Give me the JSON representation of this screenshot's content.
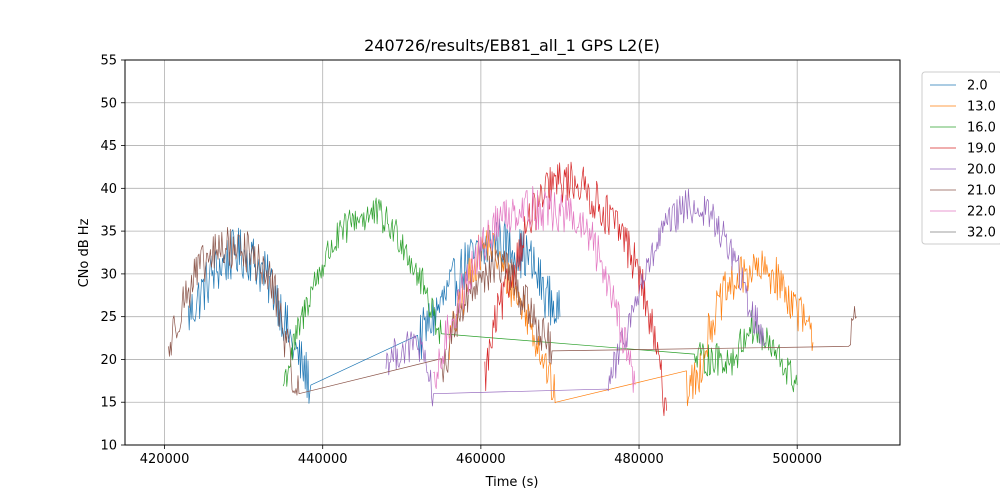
{
  "chart_data": {
    "type": "line",
    "title": "240726/results/EB81_all_1 GPS L2(E)",
    "xlabel": "Time (s)",
    "ylabel": "CNo dB Hz",
    "xlim": [
      415000,
      513000
    ],
    "ylim": [
      10,
      55
    ],
    "xticks": [
      420000,
      440000,
      460000,
      480000,
      500000
    ],
    "yticks": [
      10,
      15,
      20,
      25,
      30,
      35,
      40,
      45,
      50,
      55
    ],
    "grid": true,
    "legend_position": "outside-top-right",
    "series": [
      {
        "name": "2.0",
        "color": "#1f77b4",
        "noise": 3.0,
        "points": [
          [
            423000,
            25
          ],
          [
            426000,
            30
          ],
          [
            429000,
            32.5
          ],
          [
            431000,
            32
          ],
          [
            434000,
            28
          ],
          [
            436000,
            22
          ],
          [
            438500,
            17
          ],
          [
            452000,
            22
          ],
          [
            458000,
            31
          ],
          [
            462000,
            34
          ],
          [
            464000,
            33
          ],
          [
            466000,
            32
          ],
          [
            468000,
            28
          ],
          [
            470000,
            25
          ]
        ]
      },
      {
        "name": "13.0",
        "color": "#ff7f0e",
        "noise": 2.5,
        "points": [
          [
            456000,
            22
          ],
          [
            459000,
            31
          ],
          [
            461000,
            34
          ],
          [
            463000,
            30
          ],
          [
            466000,
            25
          ],
          [
            468000,
            20
          ],
          [
            469500,
            15
          ],
          [
            486000,
            16.5
          ],
          [
            487500,
            18
          ],
          [
            489000,
            24
          ],
          [
            491000,
            28
          ],
          [
            494000,
            30.5
          ],
          [
            497000,
            30
          ],
          [
            500000,
            26
          ],
          [
            502000,
            22
          ]
        ]
      },
      {
        "name": "16.0",
        "color": "#2ca02c",
        "noise": 2.0,
        "points": [
          [
            435000,
            17
          ],
          [
            436500,
            22
          ],
          [
            438500,
            28
          ],
          [
            441000,
            33
          ],
          [
            444000,
            36.5
          ],
          [
            447000,
            37
          ],
          [
            450000,
            34
          ],
          [
            453000,
            28
          ],
          [
            455000,
            23
          ],
          [
            487000,
            20
          ],
          [
            492000,
            20
          ],
          [
            494000,
            24
          ],
          [
            497000,
            21
          ],
          [
            500000,
            17
          ]
        ]
      },
      {
        "name": "19.0",
        "color": "#d62728",
        "noise": 2.5,
        "points": [
          [
            460500,
            18
          ],
          [
            462000,
            25
          ],
          [
            464000,
            30
          ],
          [
            466000,
            36
          ],
          [
            469000,
            40.5
          ],
          [
            472000,
            41
          ],
          [
            475000,
            38
          ],
          [
            478000,
            34.5
          ],
          [
            480000,
            30
          ],
          [
            482000,
            22
          ],
          [
            483500,
            14
          ]
        ]
      },
      {
        "name": "20.0",
        "color": "#9467bd",
        "noise": 2.0,
        "points": [
          [
            448000,
            20
          ],
          [
            450000,
            21
          ],
          [
            452000,
            22
          ],
          [
            454000,
            16
          ],
          [
            476000,
            17
          ],
          [
            478000,
            22
          ],
          [
            480000,
            28
          ],
          [
            483000,
            35
          ],
          [
            486000,
            38
          ],
          [
            489000,
            37
          ],
          [
            492000,
            32
          ],
          [
            494000,
            26
          ],
          [
            496000,
            22
          ]
        ]
      },
      {
        "name": "21.0",
        "color": "#8c564b",
        "noise": 2.5,
        "points": [
          [
            420500,
            21
          ],
          [
            422000,
            26
          ],
          [
            424000,
            30
          ],
          [
            427000,
            33
          ],
          [
            430000,
            33
          ],
          [
            432000,
            31
          ],
          [
            434000,
            28
          ],
          [
            436000,
            19
          ],
          [
            437000,
            16
          ],
          [
            455000,
            18
          ],
          [
            457000,
            25
          ],
          [
            460000,
            30
          ],
          [
            463000,
            31
          ],
          [
            466000,
            26
          ],
          [
            469000,
            21
          ],
          [
            506500,
            21
          ],
          [
            507500,
            25
          ]
        ]
      },
      {
        "name": "22.0",
        "color": "#e377c2",
        "noise": 2.5,
        "points": [
          [
            454000,
            16
          ],
          [
            456000,
            24
          ],
          [
            459000,
            31
          ],
          [
            462000,
            36
          ],
          [
            465000,
            38
          ],
          [
            468000,
            37.5
          ],
          [
            471000,
            37
          ],
          [
            474000,
            34
          ],
          [
            477000,
            27
          ],
          [
            479500,
            17
          ]
        ]
      },
      {
        "name": "32.0",
        "color": "#7f7f7f",
        "noise": 0,
        "points": []
      }
    ]
  }
}
